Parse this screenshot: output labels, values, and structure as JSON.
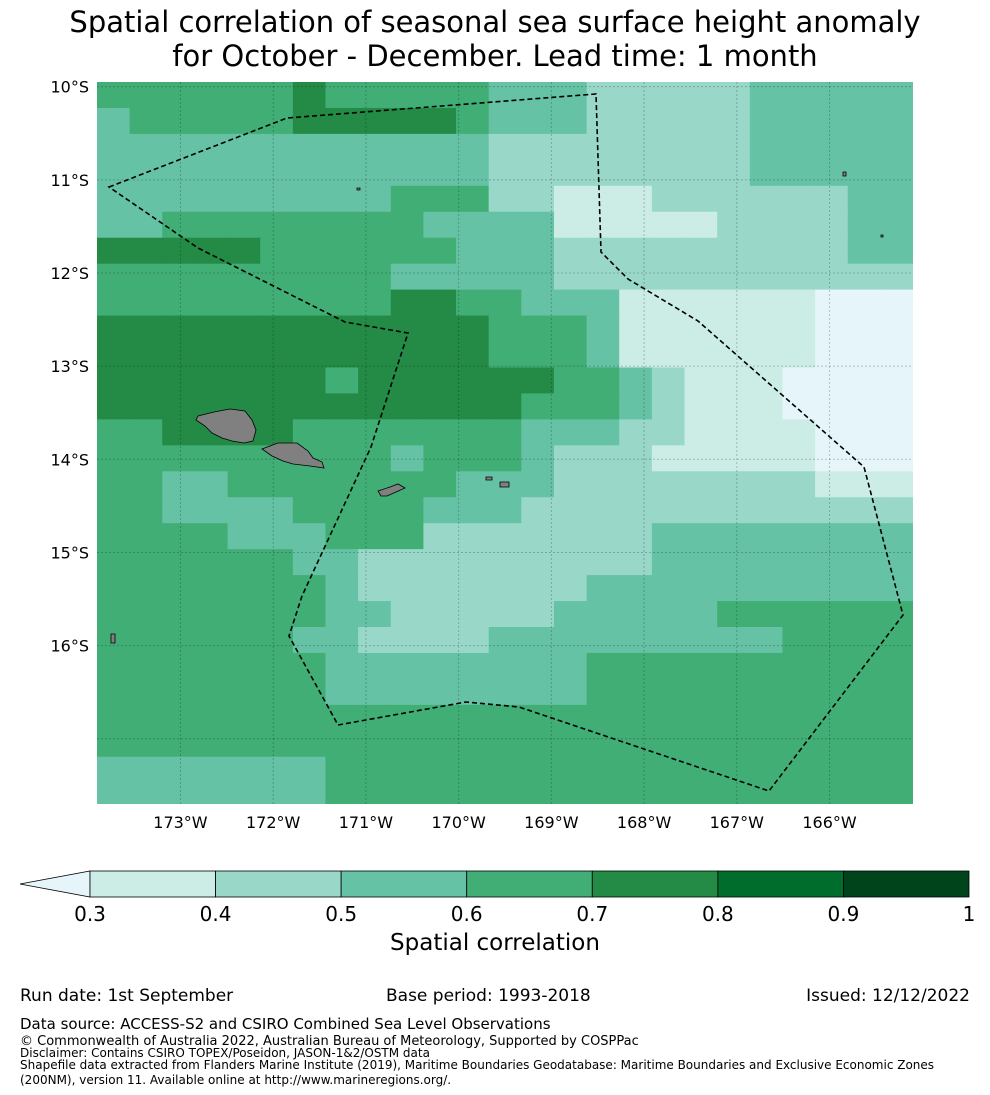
{
  "title": {
    "line1": "Spatial correlation of seasonal sea surface height anomaly",
    "line2": "for October - December. Lead time: 1 month"
  },
  "map": {
    "lat_labels": [
      "10°S",
      "11°S",
      "12°S",
      "13°S",
      "14°S",
      "15°S",
      "16°S"
    ],
    "lon_labels": [
      "173°W",
      "172°W",
      "171°W",
      "170°W",
      "169°W",
      "168°W",
      "167°W",
      "166°W"
    ],
    "lon_range": [
      -173.9,
      -165.1
    ],
    "lat_range": [
      -17.7,
      -9.95
    ],
    "colors": {
      "c0": "#e5f5f9",
      "c1": "#ccece6",
      "c2": "#99d8c9",
      "c3": "#66c2a4",
      "c4": "#41ae76",
      "c5": "#238b45",
      "c6": "#006d2c",
      "c7": "#00441b",
      "land": "#808080",
      "boundary": "#000000"
    },
    "correlation_grid_lat_range": [
      -17.75,
      -9.95
    ],
    "correlation_grid_lon_range": [
      -173.9,
      -165.1
    ],
    "correlation_grid": [
      "4444445444443332222233333",
      "3444445555543332222233333",
      "3333333333332222222233333",
      "3333333333332222222233333",
      "3333333334442211122222233",
      "3344444444333311111222233",
      "5555544444433322222222233",
      "4444444443333322222222222",
      "4444444445544333111111000",
      "5555555555554443111111000",
      "5555555555554443111111000",
      "5555555455555544321110000",
      "5555555555555444321110000",
      "4455554444444333221111000",
      "4444444443444322211111000",
      "4433444444433322222222111",
      "4433334444333222222222222",
      "4444333444222222233333333",
      "4444443322222222233333333",
      "4444444322222223333333333",
      "4444444332222233333444444",
      "4444443322223333333334444",
      "4444444333333334444444444",
      "4444444333333334444444444",
      "4444444444444444444444444",
      "4444444444444444444444444",
      "3333333444444444444444444",
      "3333333444444444444444444"
    ]
  },
  "colorbar": {
    "ticks": [
      "0.3",
      "0.4",
      "0.5",
      "0.6",
      "0.7",
      "0.8",
      "0.9",
      "1"
    ],
    "label": "Spatial correlation"
  },
  "footer": {
    "run_date": "Run date: 1st September",
    "base_period": "Base period: 1993-2018",
    "issued": "Issued: 12/12/2022",
    "data_source": "Data source: ACCESS-S2 and CSIRO Combined Sea Level Observations",
    "copyright": "© Commonwealth of Australia 2022, Australian Bureau of Meteorology, Supported by COSPPac",
    "disclaimer": "Disclaimer: Contains CSIRO TOPEX/Poseidon, JASON-1&2/OSTM data",
    "shapefile1": "Shapefile data extracted from Flanders Marine Institute (2019), Maritime Boundaries Geodatabase: Maritime Boundaries and Exclusive Economic Zones",
    "shapefile2": "(200NM), version 11. Available online at http://www.marineregions.org/."
  }
}
